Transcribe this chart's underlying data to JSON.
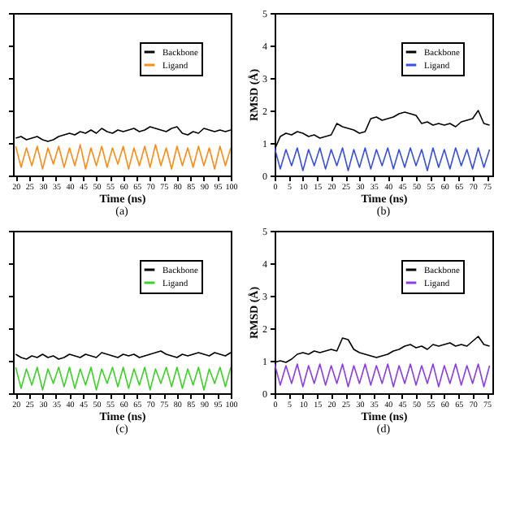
{
  "chart_data": [
    {
      "type": "line",
      "xlabel": "Time (ns)",
      "annotations": [
        "(a)"
      ],
      "xlim": [
        19,
        100
      ],
      "xticks": [
        20,
        25,
        30,
        35,
        40,
        45,
        50,
        55,
        60,
        65,
        70,
        75,
        80,
        85,
        90,
        95,
        100
      ],
      "ylim": [
        0,
        5
      ],
      "yticks": [
        0,
        1,
        2,
        3,
        4,
        5
      ],
      "tick_labels": "x",
      "legend": "top right",
      "x": [
        20,
        22,
        24,
        26,
        28,
        30,
        32,
        34,
        36,
        38,
        40,
        42,
        44,
        46,
        48,
        50,
        52,
        54,
        56,
        58,
        60,
        62,
        64,
        66,
        68,
        70,
        72,
        74,
        76,
        78,
        80,
        82,
        84,
        86,
        88,
        90,
        92,
        94,
        96,
        98,
        100
      ],
      "series": [
        {
          "name": "Backbone",
          "color": "#000000",
          "values": [
            1.15,
            1.2,
            1.1,
            1.15,
            1.2,
            1.1,
            1.05,
            1.1,
            1.2,
            1.25,
            1.3,
            1.25,
            1.35,
            1.3,
            1.4,
            1.3,
            1.45,
            1.35,
            1.3,
            1.4,
            1.35,
            1.4,
            1.45,
            1.35,
            1.4,
            1.5,
            1.45,
            1.4,
            1.35,
            1.45,
            1.5,
            1.3,
            1.25,
            1.35,
            1.3,
            1.45,
            1.4,
            1.35,
            1.4,
            1.35,
            1.4
          ]
        },
        {
          "name": "Ligand",
          "color": "#ff8c1a",
          "values": [
            0.9,
            0.25,
            0.85,
            0.3,
            0.9,
            0.2,
            0.85,
            0.35,
            0.9,
            0.25,
            0.85,
            0.3,
            0.95,
            0.2,
            0.85,
            0.3,
            0.9,
            0.25,
            0.85,
            0.35,
            0.9,
            0.2,
            0.85,
            0.3,
            0.9,
            0.25,
            0.95,
            0.3,
            0.85,
            0.2,
            0.9,
            0.3,
            0.85,
            0.25,
            0.9,
            0.3,
            0.85,
            0.2,
            0.9,
            0.3,
            0.85
          ]
        }
      ]
    },
    {
      "type": "line",
      "xlabel": "Time (ns)",
      "ylabel": "RMSD (Å)",
      "annotations": [
        "(b)"
      ],
      "xlim": [
        0,
        77
      ],
      "xticks": [
        0,
        5,
        10,
        15,
        20,
        25,
        30,
        35,
        40,
        45,
        50,
        55,
        60,
        65,
        70,
        75
      ],
      "ylim": [
        0,
        5
      ],
      "yticks": [
        0,
        1,
        2,
        3,
        4,
        5
      ],
      "legend": "top right",
      "x": [
        0,
        2,
        4,
        6,
        8,
        10,
        12,
        14,
        16,
        18,
        20,
        22,
        24,
        26,
        28,
        30,
        32,
        34,
        36,
        38,
        40,
        42,
        44,
        46,
        48,
        50,
        52,
        54,
        56,
        58,
        60,
        62,
        64,
        66,
        68,
        70,
        72,
        74,
        76
      ],
      "series": [
        {
          "name": "Backbone",
          "color": "#000000",
          "values": [
            0.8,
            1.2,
            1.3,
            1.25,
            1.35,
            1.3,
            1.2,
            1.25,
            1.15,
            1.2,
            1.25,
            1.6,
            1.5,
            1.45,
            1.4,
            1.3,
            1.35,
            1.75,
            1.8,
            1.7,
            1.75,
            1.8,
            1.9,
            1.95,
            1.9,
            1.85,
            1.6,
            1.65,
            1.55,
            1.6,
            1.55,
            1.6,
            1.5,
            1.65,
            1.7,
            1.75,
            2.0,
            1.6,
            1.55
          ]
        },
        {
          "name": "Ligand",
          "color": "#3a4fe0",
          "values": [
            0.85,
            0.2,
            0.8,
            0.3,
            0.85,
            0.15,
            0.8,
            0.3,
            0.85,
            0.2,
            0.8,
            0.3,
            0.85,
            0.15,
            0.8,
            0.25,
            0.85,
            0.2,
            0.8,
            0.3,
            0.85,
            0.2,
            0.8,
            0.25,
            0.85,
            0.3,
            0.8,
            0.15,
            0.85,
            0.25,
            0.8,
            0.2,
            0.85,
            0.3,
            0.8,
            0.2,
            0.85,
            0.25,
            0.8
          ]
        }
      ]
    },
    {
      "type": "line",
      "xlabel": "Time (ns)",
      "annotations": [
        "(c)"
      ],
      "xlim": [
        19,
        100
      ],
      "xticks": [
        20,
        25,
        30,
        35,
        40,
        45,
        50,
        55,
        60,
        65,
        70,
        75,
        80,
        85,
        90,
        95,
        100
      ],
      "ylim": [
        0,
        5
      ],
      "yticks": [
        0,
        1,
        2,
        3,
        4,
        5
      ],
      "tick_labels": "x",
      "legend": "top right",
      "x": [
        20,
        22,
        24,
        26,
        28,
        30,
        32,
        34,
        36,
        38,
        40,
        42,
        44,
        46,
        48,
        50,
        52,
        54,
        56,
        58,
        60,
        62,
        64,
        66,
        68,
        70,
        72,
        74,
        76,
        78,
        80,
        82,
        84,
        86,
        88,
        90,
        92,
        94,
        96,
        98,
        100
      ],
      "series": [
        {
          "name": "Backbone",
          "color": "#000000",
          "values": [
            1.2,
            1.1,
            1.05,
            1.15,
            1.1,
            1.2,
            1.1,
            1.15,
            1.05,
            1.1,
            1.2,
            1.15,
            1.1,
            1.2,
            1.15,
            1.1,
            1.25,
            1.2,
            1.15,
            1.1,
            1.2,
            1.15,
            1.2,
            1.1,
            1.15,
            1.2,
            1.25,
            1.3,
            1.2,
            1.15,
            1.1,
            1.2,
            1.15,
            1.2,
            1.25,
            1.2,
            1.15,
            1.25,
            1.2,
            1.15,
            1.25
          ]
        },
        {
          "name": "Ligand",
          "color": "#3fd12a",
          "values": [
            0.8,
            0.15,
            0.75,
            0.25,
            0.8,
            0.1,
            0.75,
            0.3,
            0.8,
            0.2,
            0.8,
            0.15,
            0.75,
            0.25,
            0.8,
            0.1,
            0.75,
            0.3,
            0.8,
            0.2,
            0.8,
            0.15,
            0.75,
            0.25,
            0.8,
            0.1,
            0.75,
            0.3,
            0.8,
            0.2,
            0.8,
            0.15,
            0.75,
            0.25,
            0.8,
            0.1,
            0.75,
            0.3,
            0.8,
            0.2,
            0.8
          ]
        }
      ]
    },
    {
      "type": "line",
      "xlabel": "Time (ns)",
      "ylabel": "RMSD (Å)",
      "annotations": [
        "(d)"
      ],
      "xlim": [
        0,
        77
      ],
      "xticks": [
        0,
        5,
        10,
        15,
        20,
        25,
        30,
        35,
        40,
        45,
        50,
        55,
        60,
        65,
        70,
        75
      ],
      "ylim": [
        0,
        5
      ],
      "yticks": [
        0,
        1,
        2,
        3,
        4,
        5
      ],
      "legend": "top right",
      "x": [
        0,
        2,
        4,
        6,
        8,
        10,
        12,
        14,
        16,
        18,
        20,
        22,
        24,
        26,
        28,
        30,
        32,
        34,
        36,
        38,
        40,
        42,
        44,
        46,
        48,
        50,
        52,
        54,
        56,
        58,
        60,
        62,
        64,
        66,
        68,
        70,
        72,
        74,
        76
      ],
      "series": [
        {
          "name": "Backbone",
          "color": "#000000",
          "values": [
            0.95,
            1.0,
            0.95,
            1.05,
            1.2,
            1.25,
            1.2,
            1.3,
            1.25,
            1.3,
            1.35,
            1.3,
            1.7,
            1.65,
            1.35,
            1.25,
            1.2,
            1.15,
            1.1,
            1.15,
            1.2,
            1.3,
            1.35,
            1.45,
            1.5,
            1.4,
            1.45,
            1.35,
            1.5,
            1.45,
            1.5,
            1.55,
            1.45,
            1.5,
            1.45,
            1.6,
            1.75,
            1.5,
            1.45
          ]
        },
        {
          "name": "Ligand",
          "color": "#8a3ee8",
          "values": [
            0.9,
            0.25,
            0.85,
            0.3,
            0.9,
            0.2,
            0.85,
            0.3,
            0.9,
            0.25,
            0.85,
            0.3,
            0.9,
            0.2,
            0.85,
            0.3,
            0.9,
            0.25,
            0.85,
            0.3,
            0.9,
            0.2,
            0.85,
            0.3,
            0.9,
            0.25,
            0.85,
            0.3,
            0.9,
            0.2,
            0.85,
            0.3,
            0.9,
            0.25,
            0.85,
            0.3,
            0.9,
            0.2,
            0.85
          ]
        }
      ]
    }
  ]
}
